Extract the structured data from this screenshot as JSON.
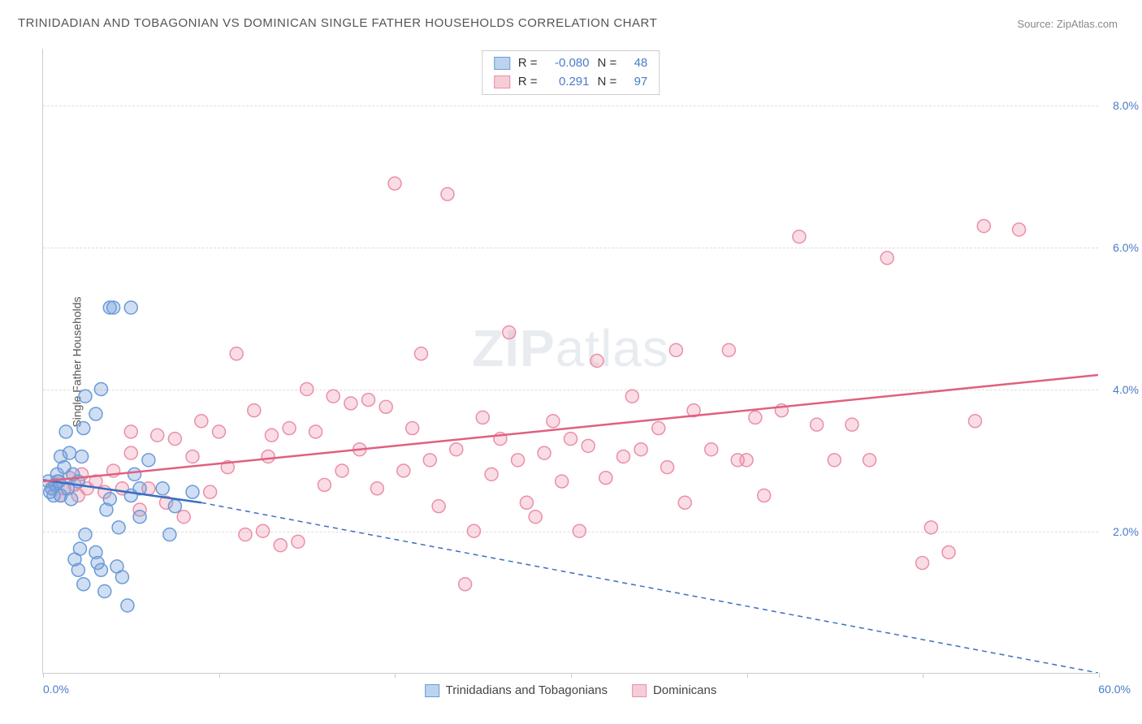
{
  "title": "TRINIDADIAN AND TOBAGONIAN VS DOMINICAN SINGLE FATHER HOUSEHOLDS CORRELATION CHART",
  "source_label": "Source:",
  "source_name": "ZipAtlas.com",
  "ylabel": "Single Father Households",
  "watermark_a": "ZIP",
  "watermark_b": "atlas",
  "chart": {
    "type": "scatter",
    "background_color": "#ffffff",
    "grid_color": "#dddddd",
    "axis_color": "#cccccc",
    "tick_label_color": "#4a7bc8",
    "xlim": [
      0,
      60
    ],
    "ylim": [
      0,
      8.8
    ],
    "yticks": [
      2.0,
      4.0,
      6.0,
      8.0
    ],
    "ytick_labels": [
      "2.0%",
      "4.0%",
      "6.0%",
      "8.0%"
    ],
    "xticks": [
      0,
      10,
      20,
      30,
      40,
      50,
      60
    ],
    "x_end_labels": {
      "min": "0.0%",
      "max": "60.0%"
    },
    "marker_radius": 8,
    "marker_stroke_width": 1.5,
    "series": [
      {
        "name": "Trinidadians and Tobagonians",
        "color_fill": "rgba(120,160,220,0.35)",
        "color_stroke": "#6a9bd8",
        "swatch_fill": "#bcd3ef",
        "swatch_border": "#6a9bd8",
        "R": "-0.080",
        "N": "48",
        "trend": {
          "x1": 0,
          "y1": 2.72,
          "x2_solid": 9,
          "y2_solid": 2.4,
          "x2": 60,
          "y2": 0.0,
          "color": "#3b6fc0",
          "width": 2.5,
          "dash": "6,5"
        },
        "points": [
          [
            0.3,
            2.7
          ],
          [
            0.5,
            2.6
          ],
          [
            0.6,
            2.5
          ],
          [
            0.7,
            2.65
          ],
          [
            0.8,
            2.8
          ],
          [
            0.4,
            2.55
          ],
          [
            0.9,
            2.7
          ],
          [
            1.0,
            2.5
          ],
          [
            1.0,
            3.05
          ],
          [
            1.2,
            2.9
          ],
          [
            1.3,
            3.4
          ],
          [
            1.5,
            3.1
          ],
          [
            1.4,
            2.6
          ],
          [
            1.7,
            2.8
          ],
          [
            1.6,
            2.45
          ],
          [
            2.0,
            2.7
          ],
          [
            2.3,
            3.45
          ],
          [
            2.4,
            3.9
          ],
          [
            2.2,
            3.05
          ],
          [
            1.8,
            1.6
          ],
          [
            2.0,
            1.45
          ],
          [
            2.3,
            1.25
          ],
          [
            2.1,
            1.75
          ],
          [
            2.4,
            1.95
          ],
          [
            3.0,
            1.7
          ],
          [
            3.1,
            1.55
          ],
          [
            3.3,
            1.45
          ],
          [
            3.6,
            2.3
          ],
          [
            3.8,
            2.45
          ],
          [
            3.5,
            1.15
          ],
          [
            4.2,
            1.5
          ],
          [
            4.5,
            1.35
          ],
          [
            4.8,
            0.95
          ],
          [
            5.0,
            2.5
          ],
          [
            5.2,
            2.8
          ],
          [
            5.5,
            2.6
          ],
          [
            6.0,
            3.0
          ],
          [
            6.8,
            2.6
          ],
          [
            7.2,
            1.95
          ],
          [
            7.5,
            2.35
          ],
          [
            8.5,
            2.55
          ],
          [
            3.0,
            3.65
          ],
          [
            3.3,
            4.0
          ],
          [
            3.8,
            5.15
          ],
          [
            4.0,
            5.15
          ],
          [
            5.0,
            5.15
          ],
          [
            5.5,
            2.2
          ],
          [
            4.3,
            2.05
          ]
        ]
      },
      {
        "name": "Dominicans",
        "color_fill": "rgba(240,140,165,0.30)",
        "color_stroke": "#ea8fa8",
        "swatch_fill": "#f6cdd7",
        "swatch_border": "#ea8fa8",
        "R": "0.291",
        "N": "97",
        "trend": {
          "x1": 0,
          "y1": 2.7,
          "x2_solid": 60,
          "y2_solid": 4.2,
          "x2": 60,
          "y2": 4.2,
          "color": "#e0607f",
          "width": 2.5,
          "dash": ""
        },
        "points": [
          [
            0.5,
            2.6
          ],
          [
            0.8,
            2.7
          ],
          [
            1.0,
            2.5
          ],
          [
            1.2,
            2.6
          ],
          [
            1.5,
            2.75
          ],
          [
            1.8,
            2.65
          ],
          [
            2.0,
            2.5
          ],
          [
            2.2,
            2.8
          ],
          [
            2.5,
            2.6
          ],
          [
            3.0,
            2.7
          ],
          [
            3.5,
            2.55
          ],
          [
            4.0,
            2.85
          ],
          [
            4.5,
            2.6
          ],
          [
            5.0,
            3.1
          ],
          [
            5.5,
            2.3
          ],
          [
            6.0,
            2.6
          ],
          [
            5.0,
            3.4
          ],
          [
            6.5,
            3.35
          ],
          [
            7.0,
            2.4
          ],
          [
            7.5,
            3.3
          ],
          [
            8.0,
            2.2
          ],
          [
            8.5,
            3.05
          ],
          [
            9.0,
            3.55
          ],
          [
            9.5,
            2.55
          ],
          [
            10.0,
            3.4
          ],
          [
            10.5,
            2.9
          ],
          [
            11.0,
            4.5
          ],
          [
            11.5,
            1.95
          ],
          [
            12.0,
            3.7
          ],
          [
            12.5,
            2.0
          ],
          [
            13.0,
            3.35
          ],
          [
            13.5,
            1.8
          ],
          [
            14.0,
            3.45
          ],
          [
            14.5,
            1.85
          ],
          [
            15.0,
            4.0
          ],
          [
            15.5,
            3.4
          ],
          [
            16.0,
            2.65
          ],
          [
            16.5,
            3.9
          ],
          [
            17.0,
            2.85
          ],
          [
            17.5,
            3.8
          ],
          [
            18.0,
            3.15
          ],
          [
            18.5,
            3.85
          ],
          [
            19.0,
            2.6
          ],
          [
            19.5,
            3.75
          ],
          [
            20.0,
            6.9
          ],
          [
            20.5,
            2.85
          ],
          [
            21.0,
            3.45
          ],
          [
            21.5,
            4.5
          ],
          [
            22.0,
            3.0
          ],
          [
            22.5,
            2.35
          ],
          [
            23.0,
            6.75
          ],
          [
            23.5,
            3.15
          ],
          [
            24.0,
            1.25
          ],
          [
            24.5,
            2.0
          ],
          [
            25.0,
            3.6
          ],
          [
            25.5,
            2.8
          ],
          [
            26.0,
            3.3
          ],
          [
            26.5,
            4.8
          ],
          [
            27.0,
            3.0
          ],
          [
            27.5,
            2.4
          ],
          [
            28.0,
            2.2
          ],
          [
            28.5,
            3.1
          ],
          [
            29.0,
            3.55
          ],
          [
            29.5,
            2.7
          ],
          [
            30.0,
            3.3
          ],
          [
            30.5,
            2.0
          ],
          [
            31.0,
            3.2
          ],
          [
            31.5,
            4.4
          ],
          [
            32.0,
            2.75
          ],
          [
            33.0,
            3.05
          ],
          [
            34.0,
            3.15
          ],
          [
            35.0,
            3.45
          ],
          [
            35.5,
            2.9
          ],
          [
            36.0,
            4.55
          ],
          [
            36.5,
            2.4
          ],
          [
            37.0,
            3.7
          ],
          [
            38.0,
            3.15
          ],
          [
            39.0,
            4.55
          ],
          [
            39.5,
            3.0
          ],
          [
            40.0,
            3.0
          ],
          [
            40.5,
            3.6
          ],
          [
            41.0,
            2.5
          ],
          [
            42.0,
            3.7
          ],
          [
            43.0,
            6.15
          ],
          [
            44.0,
            3.5
          ],
          [
            45.0,
            3.0
          ],
          [
            46.0,
            3.5
          ],
          [
            48.0,
            5.85
          ],
          [
            50.0,
            1.55
          ],
          [
            50.5,
            2.05
          ],
          [
            51.5,
            1.7
          ],
          [
            53.0,
            3.55
          ],
          [
            53.5,
            6.3
          ],
          [
            55.5,
            6.25
          ],
          [
            47.0,
            3.0
          ],
          [
            33.5,
            3.9
          ],
          [
            12.8,
            3.05
          ]
        ]
      }
    ]
  },
  "r_legend_label_R": "R =",
  "r_legend_label_N": "N ="
}
